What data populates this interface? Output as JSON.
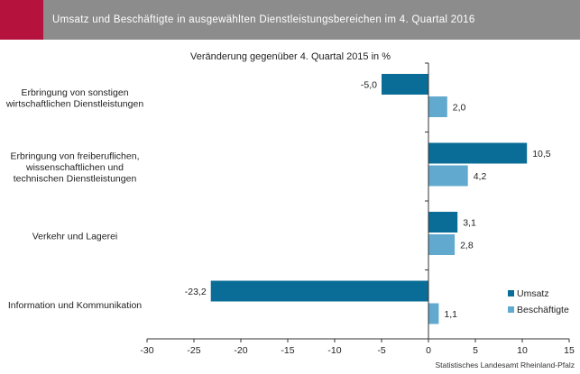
{
  "header": {
    "title": "Umsatz und Beschäftigte in ausgewählten Dienstleistungsbereichen im 4. Quartal 2016"
  },
  "source": "Statistisches Landesamt Rheinland-Pfalz",
  "colors": {
    "header_bg": "#8c8c8c",
    "accent": "#b5123e",
    "umsatz": "#0a6d97",
    "beschaeftigte": "#62a9cf"
  },
  "chart_data": {
    "type": "bar",
    "orientation": "horizontal",
    "title": "Veränderung gegenüber 4. Quartal 2015 in %",
    "categories": [
      "Erbringung von sonstigen\nwirtschaftlichen Dienstleistungen",
      "Erbringung von freiberuflichen,\nwissenschaftlichen und\ntechnischen Dienstleistungen",
      "Verkehr und Lagerei",
      "Information und Kommunikation"
    ],
    "series": [
      {
        "name": "Umsatz",
        "values": [
          -5.0,
          10.5,
          3.1,
          -23.2
        ],
        "labels": [
          "-5,0",
          "10,5",
          "3,1",
          "-23,2"
        ]
      },
      {
        "name": "Beschäftigte",
        "values": [
          2.0,
          4.2,
          2.8,
          1.1
        ],
        "labels": [
          "2,0",
          "4,2",
          "2,8",
          "1,1"
        ]
      }
    ],
    "xlim": [
      -30,
      15
    ],
    "xticks": [
      -30,
      -25,
      -20,
      -15,
      -10,
      -5,
      0,
      5,
      10,
      15
    ],
    "grid": false,
    "legend": "bottom-right"
  }
}
